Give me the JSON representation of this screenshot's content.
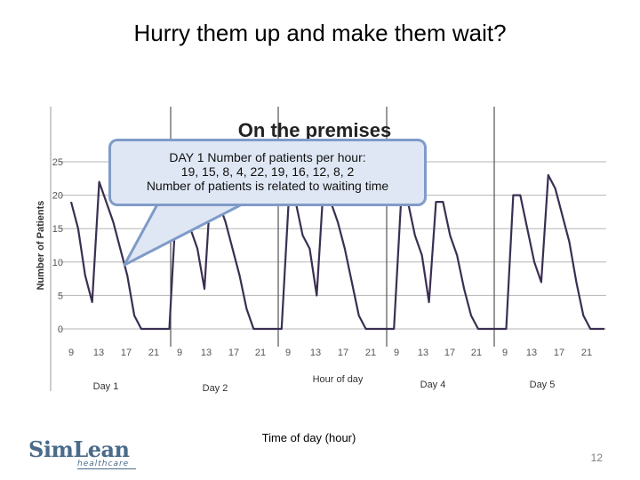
{
  "slide": {
    "title": "Hurry them up and make them wait?",
    "page_number": "12",
    "x_caption": "Time of day (hour)",
    "logo": {
      "main": "SimLean",
      "sub": "healthcare"
    }
  },
  "callout": {
    "line1": "DAY 1 Number of patients per hour:",
    "line2": "19, 15, 8, 4, 22, 19, 16, 12, 8, 2",
    "line3": "Number of patients is related to waiting time"
  },
  "chart_data": {
    "type": "line",
    "title": "On the premises",
    "xlabel": "Hour of day",
    "ylabel": "Number of Patients",
    "ylim": [
      0,
      25
    ],
    "yticks": [
      0,
      5,
      10,
      15,
      20,
      25
    ],
    "x_tick_labels": [
      "9",
      "13",
      "17",
      "21",
      "9",
      "13",
      "17",
      "21",
      "9",
      "13",
      "17",
      "21",
      "9",
      "13",
      "17",
      "21",
      "9",
      "13",
      "17",
      "21"
    ],
    "day_labels": [
      "Day 1",
      "Day 2",
      "Day 4",
      "Day 5"
    ],
    "grid": true,
    "series_color": "#3a2f52",
    "series": [
      {
        "values": [
          19,
          15,
          8,
          4,
          22,
          19,
          16,
          12,
          8,
          2,
          0,
          0,
          0,
          0,
          0,
          19,
          19,
          15,
          12,
          6,
          23,
          19,
          16,
          12,
          8,
          3,
          0,
          0,
          0,
          0,
          0,
          19,
          19,
          14,
          12,
          5,
          22,
          19,
          16,
          12,
          7,
          2,
          0,
          0,
          0,
          0,
          0,
          19,
          19,
          14,
          11,
          4,
          19,
          19,
          14,
          11,
          6,
          2,
          0,
          0,
          0,
          0,
          0,
          20,
          20,
          15,
          10,
          7,
          23,
          21,
          17,
          13,
          7,
          2,
          0,
          0,
          0
        ]
      }
    ]
  }
}
